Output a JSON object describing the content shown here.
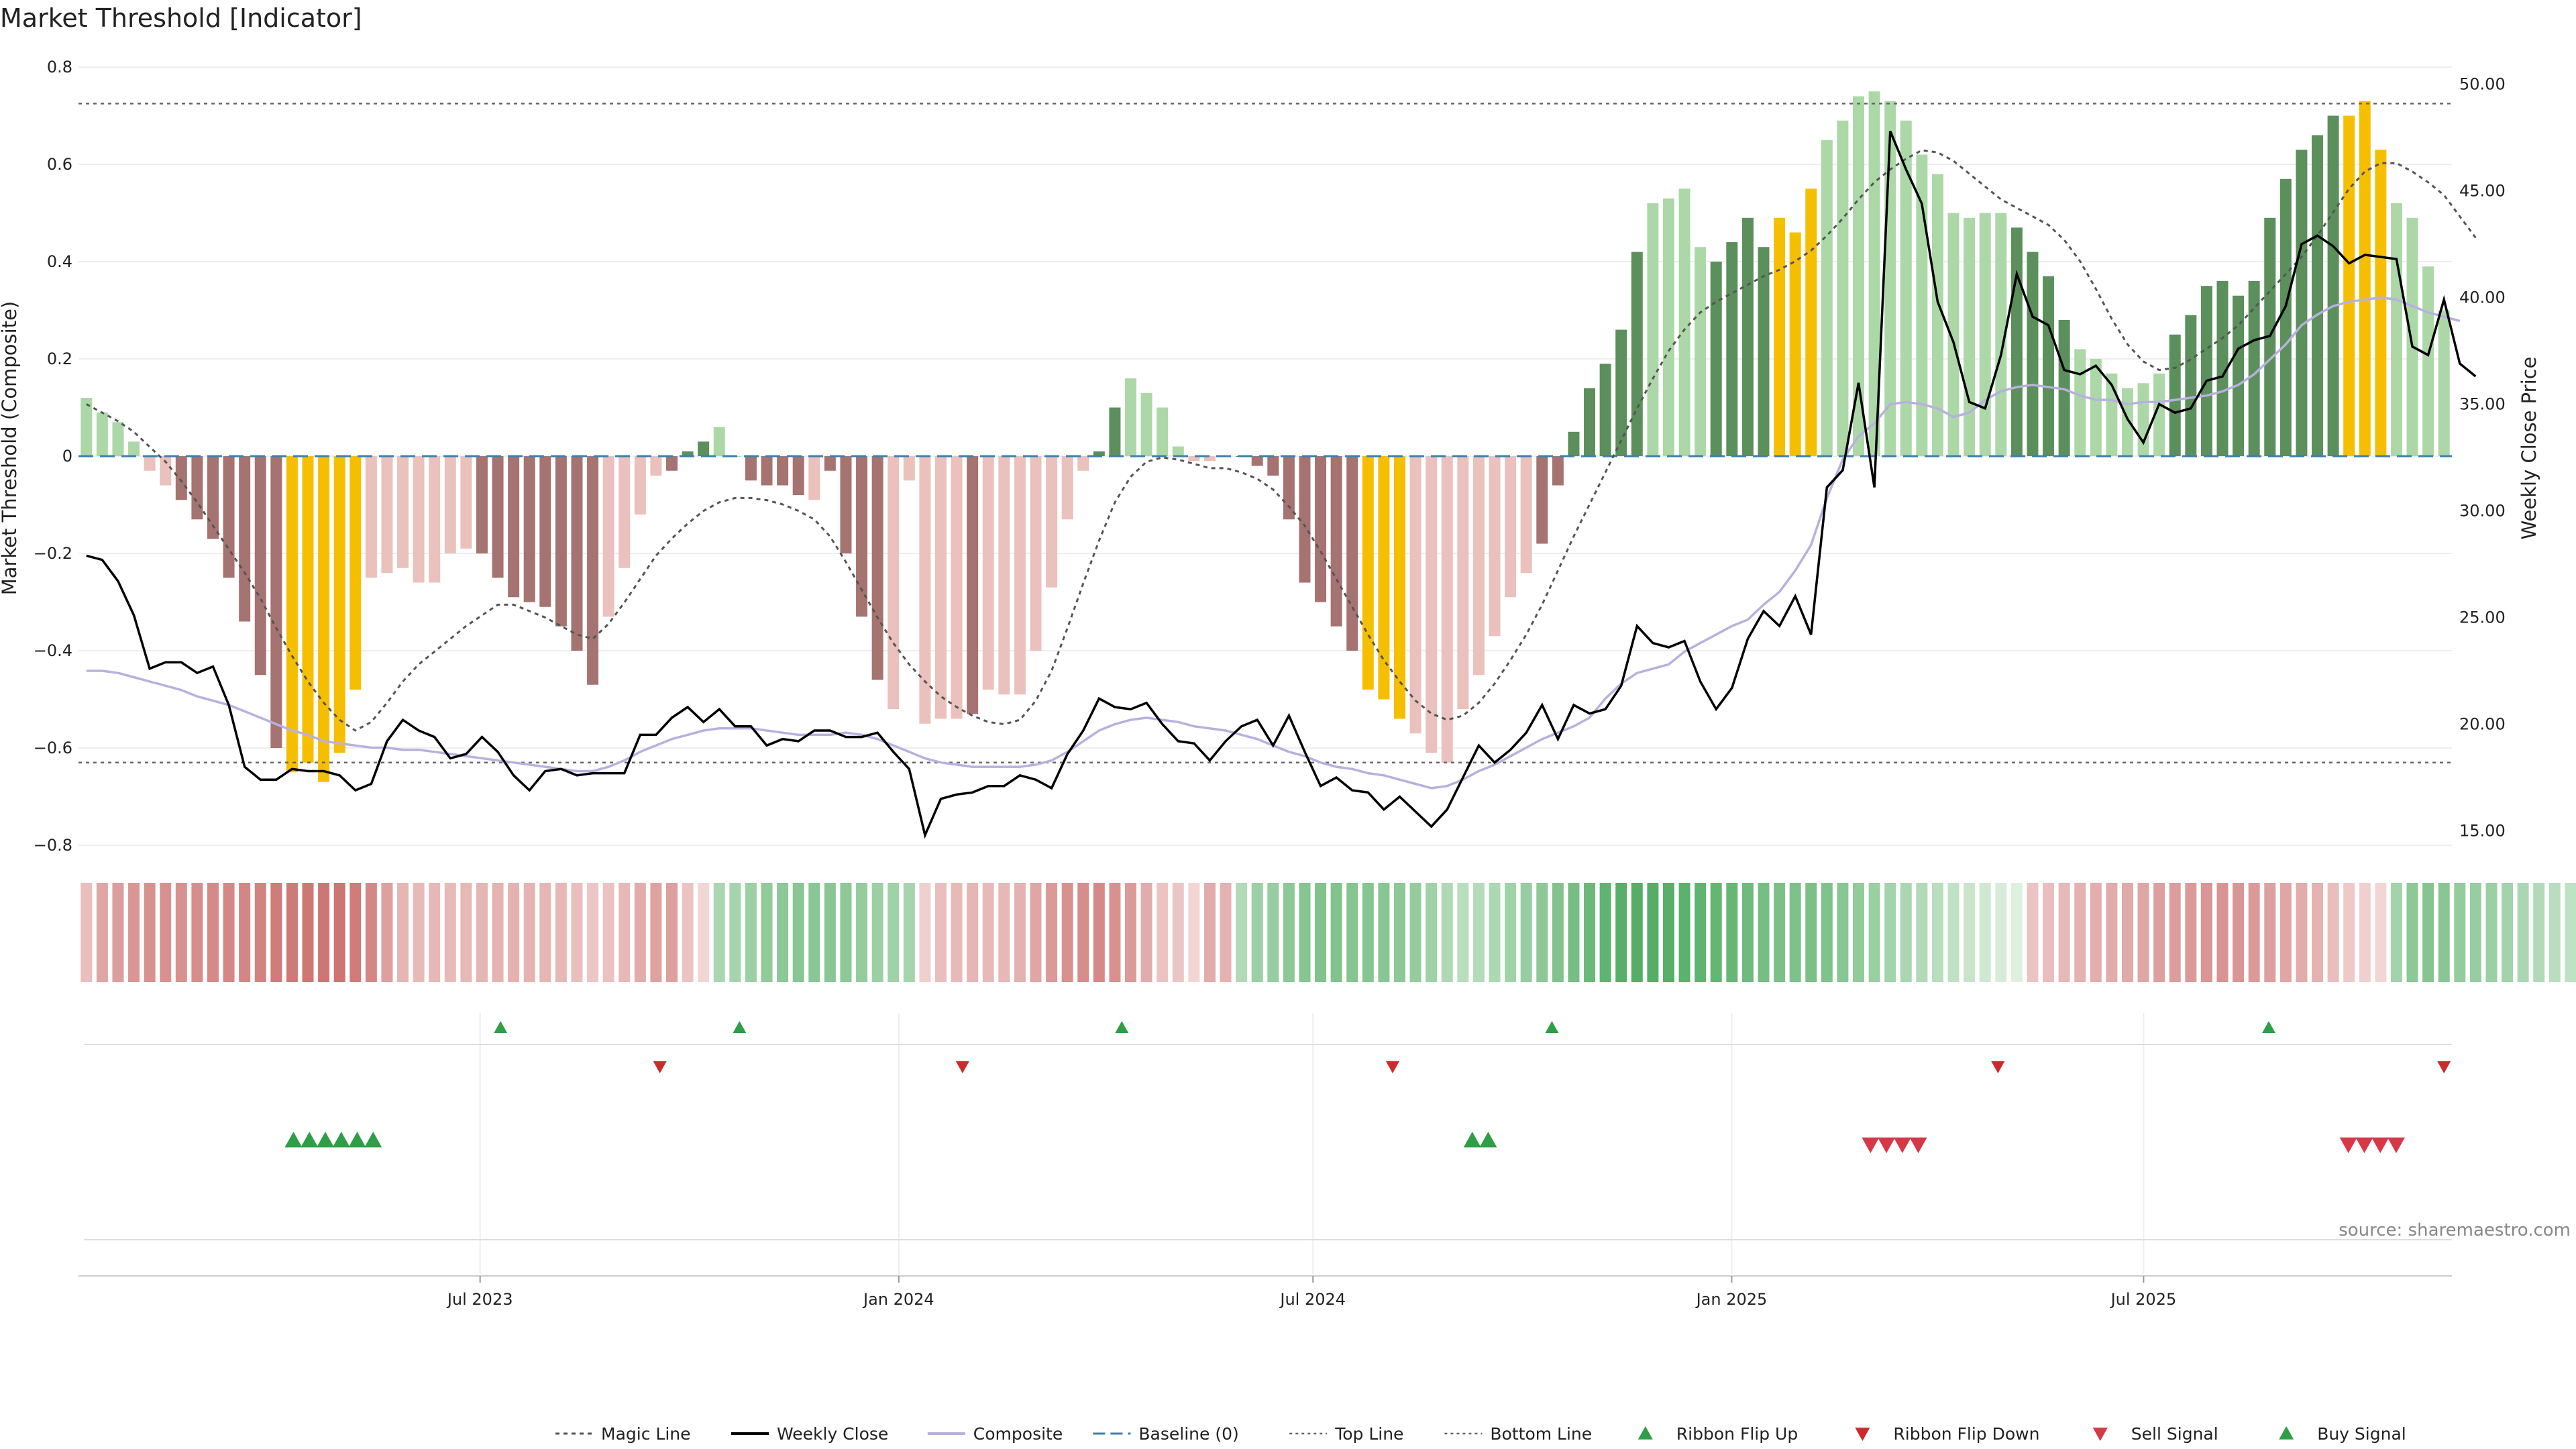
{
  "title": "Market Threshold [Indicator]",
  "source": "source: sharemaestro.com",
  "colors": {
    "bull_strong": "#5b8f5b",
    "bull_weak": "#acd8a8",
    "bear_strong": "#a57370",
    "bear_weak": "#eac1bc",
    "extreme": "#f5bf00",
    "close": "#000000",
    "composite": "#b8b0df",
    "magic": "#555555",
    "baseline": "#3d7fb0",
    "threshold": "#666666",
    "flip_up": "#2e9e47",
    "flip_down": "#cc2b2b",
    "sell": "#d63848",
    "buy": "#2e9e47"
  },
  "chart_data": {
    "type": "bar",
    "title": "Market Threshold [Indicator]",
    "x_start": "2023-01-09",
    "x_end": "2025-11-10",
    "xticks": [
      {
        "date": "2023-07-01",
        "label": "Jul 2023"
      },
      {
        "date": "2024-01-01",
        "label": "Jan 2024"
      },
      {
        "date": "2024-07-01",
        "label": "Jul 2024"
      },
      {
        "date": "2025-01-01",
        "label": "Jan 2025"
      },
      {
        "date": "2025-07-01",
        "label": "Jul 2025"
      }
    ],
    "left_axis": {
      "label": "Market Threshold (Composite)",
      "range": [
        -0.88,
        0.8
      ],
      "ticks": [
        "0.8",
        "0.6",
        "0.4",
        "0.2",
        "0",
        "−0.2",
        "−0.4",
        "−0.6",
        "−0.8"
      ],
      "tick_values": [
        0.8,
        0.6,
        0.4,
        0.2,
        0,
        -0.2,
        -0.4,
        -0.6,
        -0.8
      ]
    },
    "right_axis": {
      "label": "Weekly Close Price",
      "range": [
        12.5,
        50.8
      ],
      "ticks": [
        "50.00",
        "45.00",
        "40.00",
        "35.00",
        "30.00",
        "25.00",
        "20.00",
        "15.00"
      ],
      "tick_values": [
        50,
        45,
        40,
        35,
        30,
        25,
        20,
        15
      ]
    },
    "top_line": 0.725,
    "bottom_line": -0.63,
    "baseline": 0,
    "bars": [
      0.12,
      0.09,
      0.07,
      0.03,
      -0.03,
      -0.06,
      -0.09,
      -0.13,
      -0.17,
      -0.25,
      -0.34,
      -0.45,
      -0.6,
      -0.65,
      -0.63,
      -0.67,
      -0.61,
      -0.48,
      -0.25,
      -0.24,
      -0.23,
      -0.26,
      -0.26,
      -0.2,
      -0.19,
      -0.2,
      -0.25,
      -0.29,
      -0.3,
      -0.31,
      -0.35,
      -0.4,
      -0.47,
      -0.33,
      -0.23,
      -0.12,
      -0.04,
      -0.03,
      0.01,
      0.03,
      0.06,
      0.0,
      -0.05,
      -0.06,
      -0.06,
      -0.08,
      -0.09,
      -0.03,
      -0.2,
      -0.33,
      -0.46,
      -0.52,
      -0.05,
      -0.55,
      -0.54,
      -0.54,
      -0.53,
      -0.48,
      -0.49,
      -0.49,
      -0.4,
      -0.27,
      -0.13,
      -0.03,
      0.01,
      0.1,
      0.16,
      0.13,
      0.1,
      0.02,
      -0.01,
      -0.01,
      0.0,
      0.0,
      -0.02,
      -0.04,
      -0.13,
      -0.26,
      -0.3,
      -0.35,
      -0.4,
      -0.48,
      -0.5,
      -0.54,
      -0.57,
      -0.61,
      -0.63,
      -0.52,
      -0.45,
      -0.37,
      -0.29,
      -0.24,
      -0.18,
      -0.06,
      0.05,
      0.14,
      0.19,
      0.26,
      0.42,
      0.52,
      0.53,
      0.55,
      0.43,
      0.4,
      0.44,
      0.49,
      0.43,
      0.49,
      0.46,
      0.55,
      0.65,
      0.69,
      0.74,
      0.75,
      0.73,
      0.69,
      0.62,
      0.58,
      0.5,
      0.49,
      0.5,
      0.5,
      0.47,
      0.42,
      0.37,
      0.28,
      0.22,
      0.2,
      0.17,
      0.14,
      0.15,
      0.17,
      0.25,
      0.29,
      0.35,
      0.36,
      0.33,
      0.36,
      0.49,
      0.57,
      0.63,
      0.66,
      0.7,
      0.7,
      0.73,
      0.63,
      0.52,
      0.49,
      0.39,
      0.3
    ],
    "bar_kinds": "wwwwwwsssssssyyyyywwwwwwwsssssssswwwwssswwsssswsssswwwwwswwwwwwwsswwwwwwwssssssssyyywwwwwwwwssssssswwwwssssyyywwwwwwwwwwwwsssswwwwwwsssssssssssyyywwwwww",
    "close": [
      27.9,
      27.7,
      26.7,
      25.1,
      22.6,
      22.9,
      22.9,
      22.4,
      22.7,
      20.9,
      18.0,
      17.4,
      17.4,
      17.9,
      17.8,
      17.8,
      17.6,
      16.9,
      17.2,
      19.2,
      20.2,
      19.7,
      19.4,
      18.4,
      18.6,
      19.4,
      18.7,
      17.6,
      16.9,
      17.8,
      17.9,
      17.6,
      17.7,
      17.7,
      17.7,
      19.5,
      19.5,
      20.3,
      20.8,
      20.1,
      20.7,
      19.9,
      19.9,
      19.0,
      19.3,
      19.2,
      19.7,
      19.7,
      19.4,
      19.4,
      19.6,
      18.7,
      17.9,
      14.8,
      16.5,
      16.7,
      16.8,
      17.1,
      17.1,
      17.6,
      17.4,
      17.0,
      18.6,
      19.7,
      21.2,
      20.8,
      20.7,
      21.0,
      20.0,
      19.2,
      19.1,
      18.3,
      19.2,
      19.9,
      20.2,
      19.0,
      20.4,
      18.7,
      17.1,
      17.5,
      16.9,
      16.8,
      16.0,
      16.6,
      15.9,
      15.2,
      16.0,
      17.5,
      19.0,
      18.2,
      18.8,
      19.6,
      20.9,
      19.3,
      20.9,
      20.5,
      20.7,
      21.8,
      24.6,
      23.8,
      23.6,
      23.9,
      22.0,
      20.7,
      21.7,
      24.0,
      25.3,
      24.6,
      26.0,
      24.2,
      31.1,
      31.9,
      36.0,
      31.1,
      47.8,
      46.0,
      44.4,
      39.8,
      37.9,
      35.1,
      34.8,
      37.3,
      41.1,
      39.1,
      38.7,
      36.6,
      36.4,
      36.8,
      35.9,
      34.3,
      33.2,
      35.0,
      34.6,
      34.8,
      36.1,
      36.3,
      37.6,
      38.0,
      38.2,
      39.6,
      42.5,
      42.9,
      42.4,
      41.6,
      42.0,
      41.9,
      41.8,
      37.7,
      37.3,
      39.9,
      36.9,
      36.3
    ],
    "composite_price": [
      22.5,
      22.5,
      22.4,
      22.2,
      22.0,
      21.8,
      21.6,
      21.3,
      21.1,
      20.9,
      20.6,
      20.3,
      20.0,
      19.7,
      19.5,
      19.2,
      19.1,
      19.0,
      18.9,
      18.9,
      18.8,
      18.8,
      18.7,
      18.6,
      18.5,
      18.4,
      18.3,
      18.2,
      18.1,
      18.0,
      17.9,
      17.8,
      17.8,
      18.0,
      18.3,
      18.7,
      19.0,
      19.3,
      19.5,
      19.7,
      19.8,
      19.8,
      19.8,
      19.7,
      19.6,
      19.5,
      19.5,
      19.5,
      19.6,
      19.5,
      19.3,
      19.0,
      18.7,
      18.4,
      18.2,
      18.1,
      18.0,
      18.0,
      18.0,
      18.0,
      18.1,
      18.3,
      18.7,
      19.2,
      19.7,
      20.0,
      20.2,
      20.3,
      20.2,
      20.1,
      19.9,
      19.8,
      19.7,
      19.5,
      19.3,
      19.0,
      18.7,
      18.5,
      18.2,
      18.0,
      17.9,
      17.7,
      17.6,
      17.4,
      17.2,
      17.0,
      17.1,
      17.4,
      17.8,
      18.1,
      18.5,
      18.9,
      19.3,
      19.6,
      19.9,
      20.3,
      21.2,
      21.9,
      22.4,
      22.6,
      22.8,
      23.4,
      23.8,
      24.2,
      24.6,
      24.9,
      25.6,
      26.2,
      27.2,
      28.4,
      30.6,
      32.4,
      33.5,
      34.1,
      35.0,
      35.1,
      35.0,
      34.8,
      34.4,
      34.6,
      35.2,
      35.6,
      35.8,
      35.9,
      35.8,
      35.7,
      35.4,
      35.2,
      35.2,
      35.0,
      35.1,
      35.1,
      35.2,
      35.3,
      35.4,
      35.6,
      35.9,
      36.4,
      37.1,
      37.8,
      38.7,
      39.2,
      39.6,
      39.8,
      39.9,
      40.0,
      39.9,
      39.6,
      39.3,
      39.1,
      38.9
    ],
    "magic_price": [
      35.0,
      34.6,
      34.2,
      33.7,
      33.0,
      32.3,
      31.4,
      30.4,
      29.3,
      28.2,
      27.1,
      25.9,
      24.5,
      23.2,
      22.0,
      21.0,
      20.2,
      19.7,
      20.1,
      21.0,
      22.0,
      22.8,
      23.4,
      24.0,
      24.6,
      25.1,
      25.6,
      25.6,
      25.3,
      25.0,
      24.6,
      24.2,
      24.0,
      24.7,
      25.7,
      26.8,
      27.9,
      28.7,
      29.4,
      30.0,
      30.4,
      30.6,
      30.6,
      30.5,
      30.3,
      30.0,
      29.6,
      28.8,
      27.6,
      26.3,
      25.0,
      23.8,
      22.8,
      22.0,
      21.3,
      20.8,
      20.4,
      20.1,
      20.0,
      20.2,
      21.1,
      22.5,
      24.5,
      26.6,
      28.6,
      30.4,
      31.6,
      32.3,
      32.5,
      32.4,
      32.2,
      32.0,
      32.0,
      31.8,
      31.5,
      31.0,
      30.2,
      29.3,
      28.1,
      26.8,
      25.5,
      24.2,
      23.0,
      22.0,
      21.1,
      20.5,
      20.2,
      20.4,
      21.0,
      21.9,
      23.0,
      24.2,
      25.6,
      27.2,
      28.8,
      30.3,
      31.8,
      33.3,
      34.8,
      36.2,
      37.5,
      38.5,
      39.3,
      39.8,
      40.2,
      40.6,
      41.0,
      41.3,
      41.7,
      42.2,
      42.9,
      43.7,
      44.6,
      45.4,
      46.0,
      46.5,
      46.9,
      46.8,
      46.4,
      45.8,
      45.2,
      44.6,
      44.2,
      43.8,
      43.4,
      42.7,
      41.7,
      40.4,
      39.0,
      37.8,
      37.0,
      36.6,
      36.7,
      37.1,
      37.6,
      38.1,
      38.7,
      39.5,
      40.3,
      41.1,
      41.9,
      42.9,
      44.0,
      45.1,
      45.9,
      46.3,
      46.3,
      45.9,
      45.4,
      44.8,
      43.8,
      42.8
    ],
    "ribbon": [
      -0.25,
      -0.45,
      -0.52,
      -0.58,
      -0.62,
      -0.62,
      -0.62,
      -0.65,
      -0.68,
      -0.7,
      -0.72,
      -0.74,
      -0.8,
      -0.82,
      -0.83,
      -0.84,
      -0.86,
      -0.8,
      -0.7,
      -0.5,
      -0.32,
      -0.28,
      -0.3,
      -0.28,
      -0.3,
      -0.32,
      -0.33,
      -0.34,
      -0.33,
      -0.32,
      -0.3,
      -0.24,
      -0.18,
      -0.22,
      -0.3,
      -0.4,
      -0.48,
      -0.5,
      -0.2,
      -0.05,
      0.35,
      0.38,
      0.45,
      0.52,
      0.55,
      0.58,
      0.58,
      0.58,
      0.55,
      0.5,
      0.45,
      0.42,
      0.38,
      -0.1,
      -0.25,
      -0.28,
      -0.32,
      -0.28,
      -0.3,
      -0.35,
      -0.45,
      -0.55,
      -0.62,
      -0.66,
      -0.68,
      -0.62,
      -0.55,
      -0.4,
      -0.2,
      -0.18,
      -0.05,
      -0.4,
      -0.35,
      0.3,
      0.45,
      0.48,
      0.55,
      0.6,
      0.62,
      0.62,
      0.6,
      0.6,
      0.58,
      0.55,
      0.5,
      0.42,
      0.32,
      0.25,
      0.28,
      0.34,
      0.42,
      0.48,
      0.55,
      0.62,
      0.7,
      0.78,
      0.85,
      0.9,
      0.92,
      0.92,
      0.9,
      0.88,
      0.85,
      0.82,
      0.8,
      0.75,
      0.7,
      0.66,
      0.65,
      0.66,
      0.64,
      0.58,
      0.52,
      0.46,
      0.4,
      0.35,
      0.3,
      0.25,
      0.2,
      0.15,
      0.1,
      0.05,
      0.0,
      -0.2,
      -0.25,
      -0.3,
      -0.35,
      -0.38,
      -0.4,
      -0.42,
      -0.45,
      -0.5,
      -0.52,
      -0.55,
      -0.58,
      -0.6,
      -0.58,
      -0.55,
      -0.5,
      -0.45,
      -0.4,
      -0.35,
      -0.25,
      -0.15,
      -0.1,
      -0.05,
      0.4,
      0.55,
      0.6,
      0.58,
      0.5,
      0.48,
      0.45,
      0.4,
      0.35,
      0.3,
      0.25,
      0.2,
      -0.15
    ],
    "ribbon_flip_up_dates": [
      "2023-07-10",
      "2023-10-23",
      "2024-04-08",
      "2024-10-14",
      "2025-08-25"
    ],
    "ribbon_flip_down_dates": [
      "2023-09-18",
      "2024-01-29",
      "2024-08-05",
      "2025-04-28",
      "2025-11-10"
    ],
    "buy_signal_dates": [
      "2023-04-10",
      "2023-04-17",
      "2023-04-24",
      "2023-05-01",
      "2023-05-08",
      "2023-05-15",
      "2024-09-09",
      "2024-09-16"
    ],
    "sell_signal_dates": [
      "2025-03-03",
      "2025-03-10",
      "2025-03-17",
      "2025-03-24",
      "2025-09-29",
      "2025-10-06",
      "2025-10-13",
      "2025-10-20"
    ],
    "legend_position": "bottom-center",
    "legend": [
      "Magic Line",
      "Weekly Close",
      "Composite",
      "Baseline (0)",
      "Top Line",
      "Bottom Line",
      "Ribbon Flip Up",
      "Ribbon Flip Down",
      "Sell Signal",
      "Buy Signal"
    ],
    "grid": true
  }
}
